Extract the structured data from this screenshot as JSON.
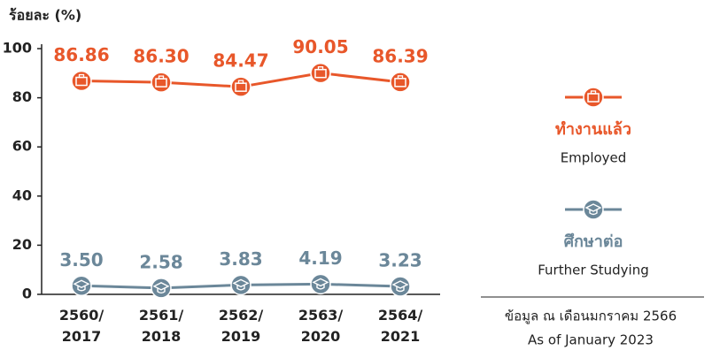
{
  "chart_data": {
    "type": "line",
    "y_label": "ร้อยละ (%)",
    "categories": [
      "2560/ 2017",
      "2561/ 2018",
      "2562/ 2019",
      "2563/ 2020",
      "2564/ 2021"
    ],
    "series": [
      {
        "name": "ทำงานแล้ว",
        "name_en": "Employed",
        "color": "#e8572a",
        "values": [
          86.86,
          86.3,
          84.47,
          90.05,
          86.39
        ],
        "value_labels": [
          "86.86",
          "86.30",
          "84.47",
          "90.05",
          "86.39"
        ]
      },
      {
        "name": "ศึกษาต่อ",
        "name_en": "Further Studying",
        "color": "#6b8799",
        "values": [
          3.5,
          2.58,
          3.83,
          4.19,
          3.23
        ],
        "value_labels": [
          "3.50",
          "2.58",
          "3.83",
          "4.19",
          "3.23"
        ]
      }
    ],
    "ylim": [
      0,
      100
    ],
    "yticks": [
      0,
      20,
      40,
      60,
      80,
      100
    ],
    "note": [
      "ข้อมูล ณ เดือนมกราคม 2566",
      "As of January 2023"
    ]
  }
}
